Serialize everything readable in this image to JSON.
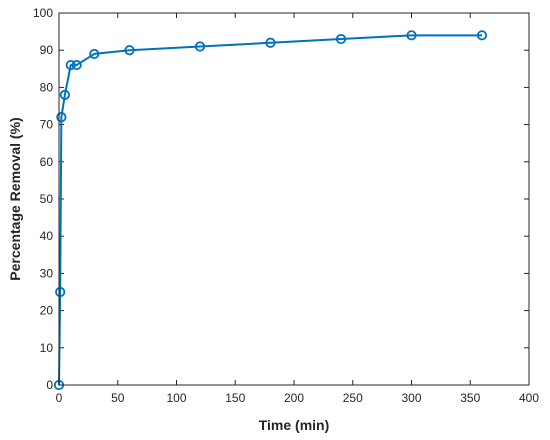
{
  "chart_data": {
    "type": "line",
    "title": "",
    "xlabel": "Time (min)",
    "ylabel": "Percentage Removal (%)",
    "xlim": [
      0,
      400
    ],
    "ylim": [
      0,
      100
    ],
    "xticks": [
      0,
      50,
      100,
      150,
      200,
      250,
      300,
      350,
      400
    ],
    "yticks": [
      0,
      10,
      20,
      30,
      40,
      50,
      60,
      70,
      80,
      90,
      100
    ],
    "grid": false,
    "legend": "none",
    "series": [
      {
        "color": "#0072BD",
        "marker": "circle",
        "x": [
          0,
          1,
          2,
          5,
          10,
          15,
          30,
          60,
          120,
          180,
          240,
          300,
          360
        ],
        "y": [
          0,
          25,
          72,
          78,
          86,
          86,
          89,
          90,
          91,
          92,
          93,
          94,
          94
        ]
      }
    ]
  }
}
